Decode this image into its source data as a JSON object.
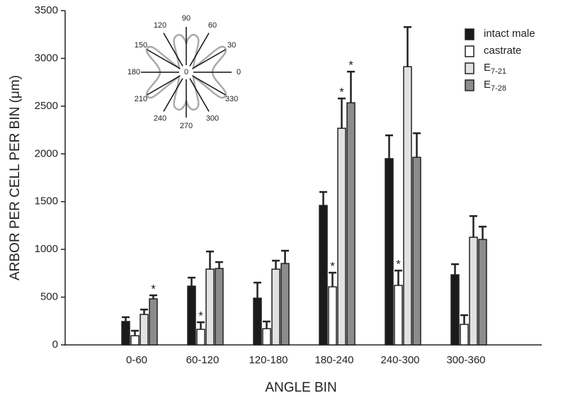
{
  "chart_data": {
    "type": "bar",
    "y_label": "ARBOR PER CELL PER BIN (μm)",
    "x_label": "ANGLE BIN",
    "categories": [
      "0-60",
      "60-120",
      "120-180",
      "180-240",
      "240-300",
      "300-360"
    ],
    "ylim": [
      0,
      3500
    ],
    "yticks": [
      0,
      500,
      1000,
      1500,
      2000,
      2500,
      3000,
      3500
    ],
    "legend": "top-right",
    "series": [
      {
        "name": "intact male",
        "color": "#1a1a1a",
        "values": [
          245,
          615,
          489,
          1460,
          1950,
          734
        ],
        "errors": [
          45,
          89,
          163,
          141,
          244,
          111
        ],
        "annotations": [
          null,
          null,
          null,
          null,
          null,
          null
        ]
      },
      {
        "name": "castrate",
        "color": "#ffffff",
        "values": [
          96,
          163,
          170,
          608,
          623,
          215
        ],
        "errors": [
          52,
          74,
          75,
          148,
          155,
          96
        ],
        "annotations": [
          null,
          "*",
          null,
          "*",
          "*",
          null
        ]
      },
      {
        "name": "E7-21",
        "color": "#e2e2e2",
        "values": [
          319,
          793,
          793,
          2268,
          2913,
          1127
        ],
        "errors": [
          51,
          185,
          89,
          312,
          415,
          222
        ],
        "annotations": [
          null,
          null,
          null,
          "*",
          null,
          null
        ]
      },
      {
        "name": "E7-28",
        "color": "#8c8c8c",
        "values": [
          482,
          800,
          852,
          2535,
          1964,
          1104
        ],
        "errors": [
          37,
          67,
          134,
          326,
          252,
          134
        ],
        "annotations": [
          "*",
          null,
          null,
          "*",
          null,
          null
        ]
      }
    ],
    "inset": {
      "angles": [
        0,
        30,
        60,
        90,
        120,
        150,
        180,
        210,
        240,
        270,
        300,
        330
      ],
      "center_label": 0
    }
  }
}
